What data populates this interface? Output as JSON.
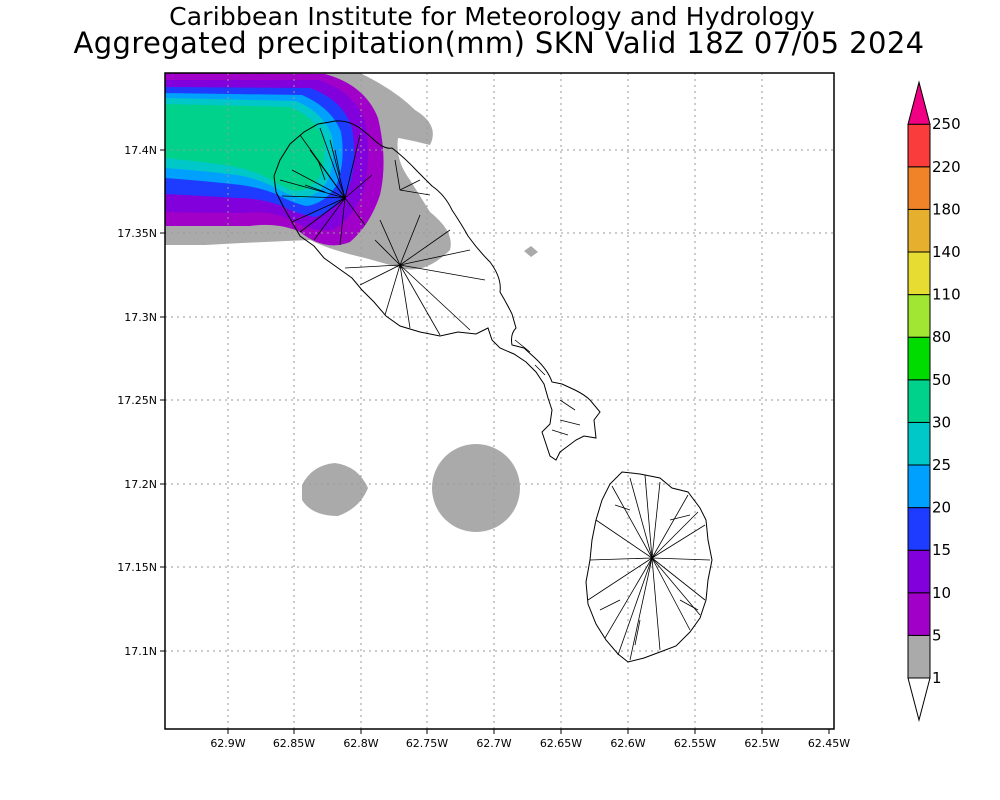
{
  "header": {
    "title_line1": "Caribbean Institute for Meteorology and Hydrology",
    "title_line2": "Aggregated precipitation(mm) SKN Valid 18Z 07/05 2024"
  },
  "map": {
    "lon_ticks": [
      "62.9W",
      "62.85W",
      "62.8W",
      "62.75W",
      "62.7W",
      "62.65W",
      "62.6W",
      "62.55W",
      "62.5W",
      "62.45W"
    ],
    "lat_ticks": [
      "17.4N",
      "17.35N",
      "17.3N",
      "17.25N",
      "17.2N",
      "17.15N",
      "17.1N"
    ]
  },
  "colorbar": {
    "levels": [
      "1",
      "5",
      "10",
      "15",
      "20",
      "25",
      "30",
      "50",
      "80",
      "110",
      "140",
      "180",
      "220",
      "250"
    ],
    "colors": [
      "#aaaaaa",
      "#a000c8",
      "#8200dc",
      "#1e3cff",
      "#00a0ff",
      "#00c8c8",
      "#00d28c",
      "#00dc00",
      "#a0e632",
      "#e6dc32",
      "#e6af2d",
      "#f08228",
      "#fa3c3c",
      "#f00082"
    ],
    "below_color": "#ffffff"
  }
}
